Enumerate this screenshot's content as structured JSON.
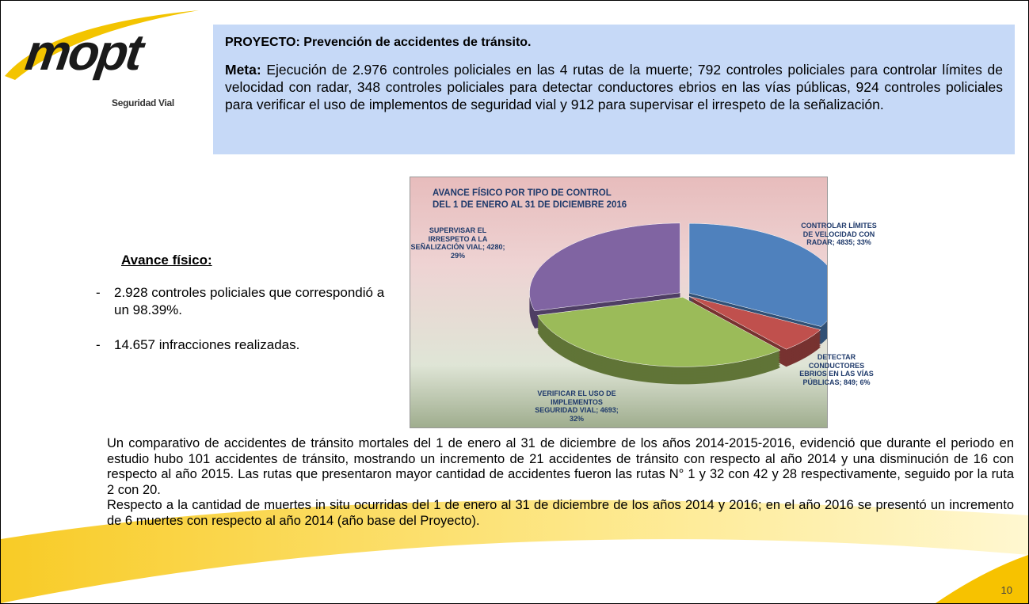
{
  "logo": {
    "brand": "mopt",
    "unit": "Seguridad Vial"
  },
  "project": {
    "title": "PROYECTO: Prevención de accidentes de tránsito.",
    "meta_label": "Meta:",
    "meta_text": "Ejecución de 2.976 controles policiales en las 4 rutas de la muerte; 792 controles policiales para controlar límites de velocidad con radar, 348 controles policiales para detectar conductores ebrios en las vías públicas, 924 controles policiales para verificar el uso de implementos de seguridad vial y 912 para supervisar el irrespeto de la señalización."
  },
  "avance": {
    "heading": "Avance físico:",
    "items": [
      "2.928 controles policiales que correspondió a un 98.39%.",
      "14.657 infracciones realizadas."
    ]
  },
  "chart_data": {
    "type": "pie",
    "title": "AVANCE FÍSICO POR TIPO DE CONTROL",
    "subtitle": "DEL 1 DE ENERO AL 31 DE DICIEMBRE 2016",
    "categories": [
      "CONTROLAR LÍMITES DE VELOCIDAD CON RADAR;",
      "DETECTAR CONDUCTORES EBRIOS EN LAS VÍAS PÚBLICAS;",
      "VERIFICAR EL USO DE IMPLEMENTOS SEGURIDAD VIAL;",
      "SUPERVISAR EL IRRESPETO A LA SEÑALIZACIÓN VIAL;"
    ],
    "values": [
      4835,
      849,
      4693,
      4280
    ],
    "value_labels": [
      "4835; 33%",
      "849; 6%",
      "4693; 32%",
      "4280; 29%"
    ],
    "colors": [
      "#4f81bd",
      "#c0504d",
      "#9bbb59",
      "#8064a2"
    ]
  },
  "paragraphs": [
    "Un comparativo de accidentes de tránsito mortales del 1 de enero al 31 de diciembre de los años 2014-2015-2016, evidenció que durante el periodo en estudio hubo 101 accidentes de tránsito, mostrando un incremento de 21 accidentes de tránsito con respecto al año 2014 y una disminución de 16 con respecto al año 2015. Las rutas que presentaron mayor cantidad de accidentes fueron las rutas N° 1 y 32 con 42 y 28 respectivamente, seguido por la ruta 2 con 20.",
    "Respecto a la cantidad de muertes in situ ocurridas del 1 de enero al 31 de diciembre de los años 2014 y 2016; en el año 2016 se presentó un incremento de 6 muertes con respecto al año 2014 (año base del Proyecto)."
  ],
  "page_number": "10"
}
